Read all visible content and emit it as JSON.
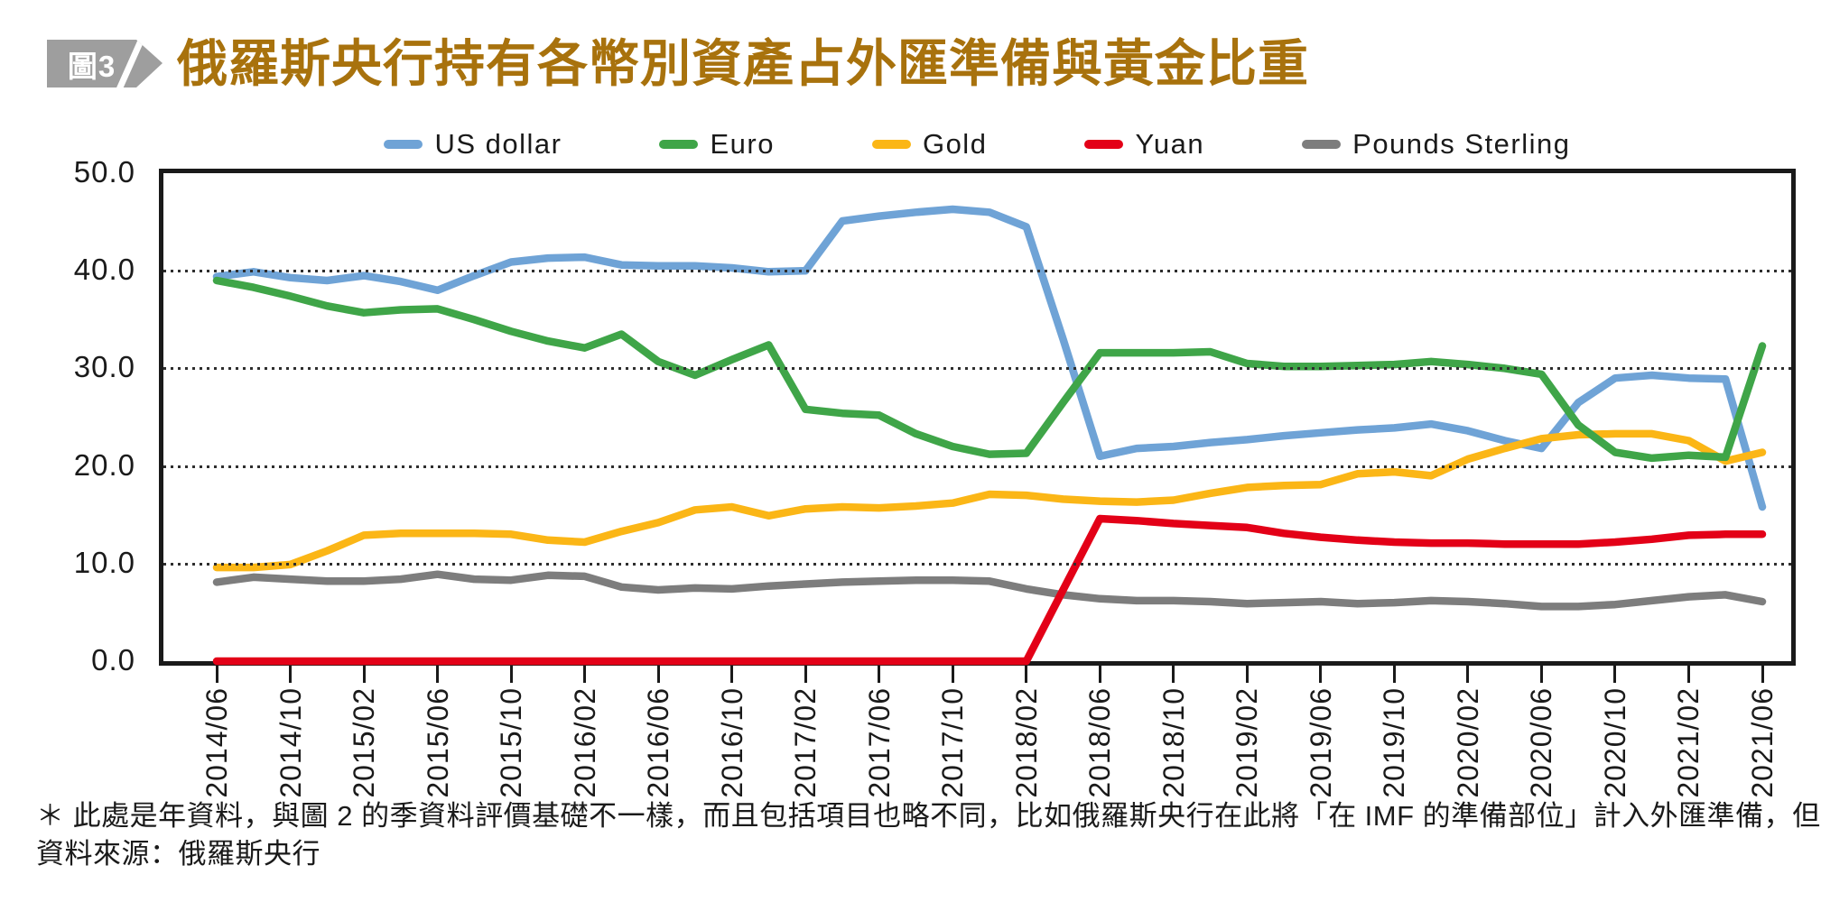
{
  "figure_badge": "圖3",
  "title": "俄羅斯央行持有各幣別資產占外匯準備與黃金比重",
  "footnote_line1": "＊ 此處是年資料，與圖 2 的季資料評價基礎不一樣，而且包括項目也略不同，比如俄羅斯央行在此將「在 IMF 的準備部位」計入外匯準備，但影響不大",
  "footnote_line2": "資料來源：俄羅斯央行",
  "colors": {
    "title": "#A8720D",
    "badge_bg": "#9E9E9E",
    "badge_text": "#FFFFFF",
    "axis": "#1A1A1A",
    "gridline": "#2E2E2E"
  },
  "chart_data": {
    "type": "line",
    "title": "",
    "xlabel": "",
    "ylabel": "",
    "ylim": [
      0,
      50
    ],
    "grid": "horizontal-dotted",
    "legend_position": "top-center",
    "y_tick_labels": [
      "0.0",
      "10.0",
      "20.0",
      "30.0",
      "40.0",
      "50.0"
    ],
    "x_tick_labels": [
      "2014/06",
      "2014/10",
      "2015/02",
      "2015/06",
      "2015/10",
      "2016/02",
      "2016/06",
      "2016/10",
      "2017/02",
      "2017/06",
      "2017/10",
      "2018/02",
      "2018/06",
      "2018/10",
      "2019/02",
      "2019/06",
      "2019/10",
      "2020/02",
      "2020/06",
      "2020/10",
      "2021/02",
      "2021/06"
    ],
    "x": [
      "2014/06",
      "2014/08",
      "2014/10",
      "2014/12",
      "2015/02",
      "2015/04",
      "2015/06",
      "2015/08",
      "2015/10",
      "2015/12",
      "2016/02",
      "2016/04",
      "2016/06",
      "2016/08",
      "2016/10",
      "2016/12",
      "2017/02",
      "2017/04",
      "2017/06",
      "2017/08",
      "2017/10",
      "2017/12",
      "2018/02",
      "2018/04",
      "2018/06",
      "2018/08",
      "2018/10",
      "2018/12",
      "2019/02",
      "2019/04",
      "2019/06",
      "2019/08",
      "2019/10",
      "2019/12",
      "2020/02",
      "2020/04",
      "2020/06",
      "2020/08",
      "2020/10",
      "2020/12",
      "2021/02",
      "2021/04",
      "2021/06"
    ],
    "series": [
      {
        "name": "US dollar",
        "color": "#6FA3D6",
        "values": [
          39.4,
          39.9,
          39.3,
          39.0,
          39.5,
          38.9,
          38.0,
          39.5,
          40.9,
          41.3,
          41.4,
          40.6,
          40.5,
          40.5,
          40.3,
          39.9,
          40.0,
          45.1,
          45.6,
          46.0,
          46.3,
          46.0,
          44.5,
          33.0,
          21.0,
          21.8,
          22.0,
          22.4,
          22.7,
          23.1,
          23.4,
          23.7,
          23.9,
          24.3,
          23.6,
          22.6,
          21.8,
          26.5,
          29.0,
          29.3,
          29.0,
          28.9,
          15.8
        ]
      },
      {
        "name": "Euro",
        "color": "#3FA548",
        "values": [
          39.0,
          38.3,
          37.4,
          36.4,
          35.7,
          36.0,
          36.1,
          35.0,
          33.8,
          32.8,
          32.1,
          33.5,
          30.7,
          29.3,
          30.9,
          32.4,
          25.8,
          25.4,
          25.2,
          23.3,
          22.0,
          21.2,
          21.3,
          26.5,
          31.6,
          31.6,
          31.6,
          31.7,
          30.5,
          30.2,
          30.2,
          30.3,
          30.4,
          30.7,
          30.4,
          30.0,
          29.4,
          24.2,
          21.4,
          20.8,
          21.1,
          20.9,
          32.3
        ]
      },
      {
        "name": "Gold",
        "color": "#FBB616",
        "values": [
          9.6,
          9.6,
          9.9,
          11.3,
          12.9,
          13.1,
          13.1,
          13.1,
          13.0,
          12.4,
          12.2,
          13.3,
          14.2,
          15.5,
          15.8,
          14.9,
          15.6,
          15.8,
          15.7,
          15.9,
          16.2,
          17.1,
          17.0,
          16.6,
          16.4,
          16.3,
          16.5,
          17.2,
          17.8,
          18.0,
          18.1,
          19.2,
          19.4,
          19.0,
          20.7,
          21.8,
          22.8,
          23.2,
          23.3,
          23.3,
          22.6,
          20.5,
          21.4
        ]
      },
      {
        "name": "Yuan",
        "color": "#E30017",
        "values": [
          0,
          0,
          0,
          0,
          0,
          0,
          0,
          0,
          0,
          0,
          0,
          0,
          0,
          0,
          0,
          0,
          0,
          0,
          0,
          0,
          0,
          0,
          0,
          7.3,
          14.6,
          14.4,
          14.1,
          13.9,
          13.7,
          13.1,
          12.7,
          12.4,
          12.2,
          12.1,
          12.1,
          12.0,
          12.0,
          12.0,
          12.2,
          12.5,
          12.9,
          13.0,
          13.0
        ]
      },
      {
        "name": "Pounds Sterling",
        "color": "#7D7D7D",
        "values": [
          8.1,
          8.6,
          8.4,
          8.2,
          8.2,
          8.4,
          8.9,
          8.4,
          8.3,
          8.8,
          8.7,
          7.6,
          7.3,
          7.5,
          7.4,
          7.7,
          7.9,
          8.1,
          8.2,
          8.3,
          8.3,
          8.2,
          7.4,
          6.8,
          6.4,
          6.2,
          6.2,
          6.1,
          5.9,
          6.0,
          6.1,
          5.9,
          6.0,
          6.2,
          6.1,
          5.9,
          5.6,
          5.6,
          5.8,
          6.2,
          6.6,
          6.8,
          6.1
        ]
      }
    ]
  }
}
